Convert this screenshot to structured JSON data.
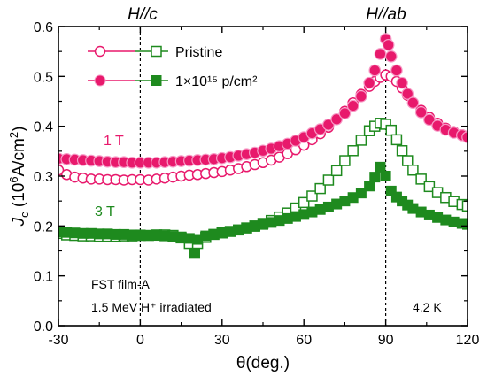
{
  "chart_data": {
    "type": "scatter",
    "xlabel": "θ(deg.)",
    "xlim": [
      -30,
      120
    ],
    "ylim": [
      0.0,
      0.6
    ],
    "x_ticks": [
      -30,
      0,
      30,
      60,
      90,
      120
    ],
    "y_ticks": [
      0.0,
      0.1,
      0.2,
      0.3,
      0.4,
      0.5,
      0.6
    ],
    "grid": false,
    "legend_position": "top-left",
    "legend": [
      {
        "label": "Pristine",
        "markers": "open"
      },
      {
        "label": "1×10¹⁵ p/cm²",
        "markers": "filled"
      }
    ],
    "top_labels": [
      {
        "text": "H//c",
        "x": 0
      },
      {
        "text": "H//ab",
        "x": 90
      }
    ],
    "field_labels": [
      {
        "text": "1 T",
        "color": "#e8196c"
      },
      {
        "text": "3 T",
        "color": "#1e8a1e"
      }
    ],
    "annotations": [
      "FST film-A",
      "1.5 MeV H⁺ irradiated",
      "4.2 K"
    ],
    "vlines": [
      0,
      90
    ],
    "colors": {
      "pink": "#e8196c",
      "pink_light": "#f79ac6",
      "green": "#1e8a1e",
      "green_light": "#b9d8b9"
    },
    "series": [
      {
        "field": "1 T",
        "state": "Pristine",
        "marker": "circle",
        "fill": "open",
        "color": "#e8196c",
        "x": [
          -30,
          -27,
          -24,
          -21,
          -18,
          -15,
          -12,
          -9,
          -6,
          -3,
          0,
          3,
          6,
          9,
          12,
          15,
          18,
          21,
          24,
          27,
          30,
          33,
          36,
          39,
          42,
          45,
          48,
          51,
          54,
          57,
          60,
          63,
          66,
          69,
          72,
          75,
          78,
          81,
          84,
          86,
          88,
          90,
          92,
          94,
          96,
          98,
          100,
          103,
          106,
          109,
          112,
          115,
          118,
          120
        ],
        "y": [
          0.312,
          0.303,
          0.298,
          0.296,
          0.294,
          0.294,
          0.293,
          0.293,
          0.292,
          0.293,
          0.293,
          0.292,
          0.294,
          0.296,
          0.298,
          0.3,
          0.302,
          0.303,
          0.305,
          0.307,
          0.309,
          0.312,
          0.315,
          0.319,
          0.323,
          0.327,
          0.332,
          0.338,
          0.345,
          0.353,
          0.362,
          0.373,
          0.385,
          0.398,
          0.414,
          0.43,
          0.447,
          0.464,
          0.48,
          0.49,
          0.498,
          0.503,
          0.5,
          0.49,
          0.477,
          0.462,
          0.447,
          0.432,
          0.418,
          0.406,
          0.396,
          0.389,
          0.383,
          0.38
        ]
      },
      {
        "field": "1 T",
        "state": "1×10¹⁵ p/cm²",
        "marker": "circle",
        "fill": "filled",
        "color": "#e8196c",
        "x": [
          -30,
          -27,
          -24,
          -21,
          -18,
          -15,
          -12,
          -9,
          -6,
          -3,
          0,
          3,
          6,
          9,
          12,
          15,
          18,
          21,
          24,
          27,
          30,
          33,
          36,
          39,
          42,
          45,
          48,
          51,
          54,
          57,
          60,
          63,
          66,
          69,
          72,
          75,
          78,
          81,
          84,
          86,
          88,
          90,
          91,
          92,
          94,
          96,
          98,
          100,
          103,
          106,
          109,
          112,
          115,
          118,
          120
        ],
        "y": [
          0.335,
          0.334,
          0.333,
          0.332,
          0.331,
          0.33,
          0.329,
          0.328,
          0.328,
          0.327,
          0.327,
          0.327,
          0.327,
          0.328,
          0.329,
          0.33,
          0.331,
          0.332,
          0.333,
          0.334,
          0.336,
          0.338,
          0.341,
          0.344,
          0.347,
          0.351,
          0.355,
          0.36,
          0.365,
          0.371,
          0.378,
          0.386,
          0.394,
          0.403,
          0.414,
          0.426,
          0.441,
          0.46,
          0.487,
          0.512,
          0.545,
          0.575,
          0.563,
          0.54,
          0.512,
          0.487,
          0.465,
          0.447,
          0.428,
          0.413,
          0.401,
          0.393,
          0.387,
          0.382,
          0.378
        ]
      },
      {
        "field": "3 T",
        "state": "Pristine",
        "marker": "square",
        "fill": "open",
        "color": "#1e8a1e",
        "x": [
          -30,
          -27,
          -24,
          -21,
          -18,
          -15,
          -12,
          -9,
          -6,
          -3,
          0,
          3,
          6,
          9,
          12,
          15,
          18,
          21,
          24,
          27,
          30,
          33,
          36,
          39,
          42,
          45,
          48,
          51,
          54,
          57,
          60,
          63,
          66,
          69,
          72,
          75,
          78,
          81,
          84,
          86,
          88,
          90,
          92,
          94,
          96,
          98,
          100,
          103,
          106,
          109,
          112,
          115,
          118,
          120
        ],
        "y": [
          0.185,
          0.182,
          0.181,
          0.18,
          0.18,
          0.179,
          0.179,
          0.179,
          0.18,
          0.18,
          0.181,
          0.181,
          0.182,
          0.182,
          0.181,
          0.176,
          0.165,
          0.165,
          0.177,
          0.183,
          0.186,
          0.189,
          0.192,
          0.196,
          0.2,
          0.205,
          0.211,
          0.218,
          0.226,
          0.236,
          0.247,
          0.26,
          0.275,
          0.292,
          0.311,
          0.331,
          0.351,
          0.372,
          0.391,
          0.4,
          0.406,
          0.404,
          0.392,
          0.373,
          0.351,
          0.331,
          0.312,
          0.294,
          0.279,
          0.267,
          0.257,
          0.249,
          0.243,
          0.24
        ]
      },
      {
        "field": "3 T",
        "state": "1×10¹⁵ p/cm²",
        "marker": "square",
        "fill": "filled",
        "color": "#1e8a1e",
        "x": [
          -30,
          -27,
          -24,
          -21,
          -18,
          -15,
          -12,
          -9,
          -6,
          -3,
          0,
          3,
          6,
          9,
          12,
          15,
          18,
          20,
          21,
          24,
          27,
          30,
          33,
          36,
          39,
          42,
          45,
          48,
          51,
          54,
          57,
          60,
          63,
          66,
          69,
          72,
          75,
          78,
          81,
          84,
          86,
          88,
          90,
          92,
          94,
          96,
          98,
          100,
          103,
          106,
          109,
          112,
          115,
          118,
          120
        ],
        "y": [
          0.188,
          0.187,
          0.186,
          0.185,
          0.185,
          0.184,
          0.184,
          0.183,
          0.183,
          0.182,
          0.182,
          0.181,
          0.181,
          0.18,
          0.179,
          0.178,
          0.175,
          0.145,
          0.173,
          0.18,
          0.183,
          0.186,
          0.189,
          0.192,
          0.196,
          0.199,
          0.203,
          0.207,
          0.211,
          0.215,
          0.219,
          0.223,
          0.228,
          0.233,
          0.238,
          0.244,
          0.25,
          0.257,
          0.266,
          0.28,
          0.298,
          0.318,
          0.3,
          0.27,
          0.258,
          0.25,
          0.242,
          0.235,
          0.228,
          0.222,
          0.217,
          0.212,
          0.208,
          0.205,
          0.203
        ]
      }
    ]
  }
}
